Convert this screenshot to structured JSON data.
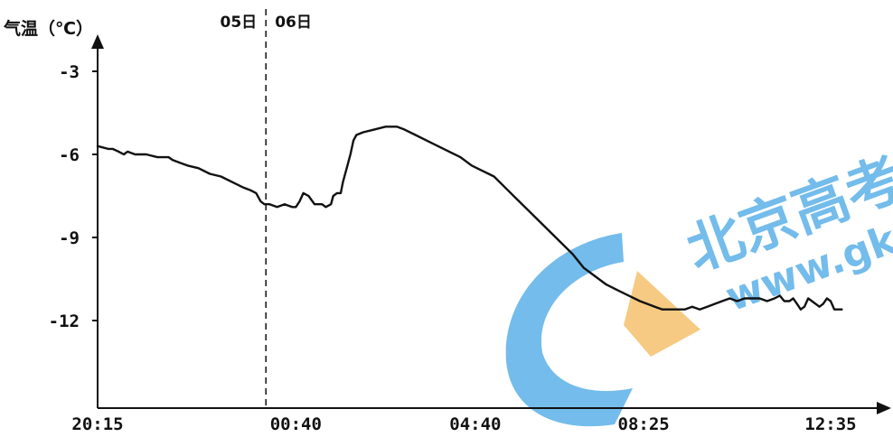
{
  "chart_data": {
    "type": "line",
    "ylabel": "气温（℃）",
    "yticks": [
      -3,
      -6,
      -9,
      -12
    ],
    "ylim": [
      -15,
      -1
    ],
    "x_ticks": [
      {
        "label": "20:15",
        "minutes": 0
      },
      {
        "label": "00:40",
        "minutes": 265
      },
      {
        "label": "04:40",
        "minutes": 505
      },
      {
        "label": "08:25",
        "minutes": 730
      },
      {
        "label": "12:35",
        "minutes": 980
      }
    ],
    "day_divider": {
      "minutes": 225,
      "before_label": "05日",
      "after_label": "06日"
    },
    "series": [
      {
        "color": "#111111",
        "points": [
          [
            0,
            -5.7
          ],
          [
            14,
            -5.8
          ],
          [
            20,
            -5.8
          ],
          [
            28,
            -5.9
          ],
          [
            35,
            -6.0
          ],
          [
            40,
            -5.9
          ],
          [
            50,
            -6.0
          ],
          [
            65,
            -6.0
          ],
          [
            80,
            -6.1
          ],
          [
            95,
            -6.1
          ],
          [
            100,
            -6.2
          ],
          [
            110,
            -6.3
          ],
          [
            120,
            -6.4
          ],
          [
            135,
            -6.5
          ],
          [
            150,
            -6.7
          ],
          [
            165,
            -6.8
          ],
          [
            180,
            -7.0
          ],
          [
            195,
            -7.2
          ],
          [
            205,
            -7.3
          ],
          [
            212,
            -7.4
          ],
          [
            218,
            -7.7
          ],
          [
            223,
            -7.8
          ],
          [
            230,
            -7.8
          ],
          [
            240,
            -7.9
          ],
          [
            250,
            -7.8
          ],
          [
            260,
            -7.9
          ],
          [
            265,
            -7.9
          ],
          [
            270,
            -7.7
          ],
          [
            275,
            -7.4
          ],
          [
            282,
            -7.5
          ],
          [
            290,
            -7.8
          ],
          [
            300,
            -7.8
          ],
          [
            305,
            -7.9
          ],
          [
            312,
            -7.8
          ],
          [
            315,
            -7.5
          ],
          [
            320,
            -7.4
          ],
          [
            325,
            -7.4
          ],
          [
            328,
            -7.0
          ],
          [
            333,
            -6.5
          ],
          [
            338,
            -6.0
          ],
          [
            342,
            -5.5
          ],
          [
            346,
            -5.3
          ],
          [
            355,
            -5.2
          ],
          [
            370,
            -5.1
          ],
          [
            385,
            -5.0
          ],
          [
            400,
            -5.0
          ],
          [
            410,
            -5.1
          ],
          [
            425,
            -5.3
          ],
          [
            440,
            -5.5
          ],
          [
            455,
            -5.7
          ],
          [
            470,
            -5.9
          ],
          [
            485,
            -6.1
          ],
          [
            500,
            -6.4
          ],
          [
            515,
            -6.6
          ],
          [
            530,
            -6.8
          ],
          [
            545,
            -7.2
          ],
          [
            560,
            -7.6
          ],
          [
            575,
            -8.0
          ],
          [
            590,
            -8.4
          ],
          [
            605,
            -8.8
          ],
          [
            620,
            -9.2
          ],
          [
            635,
            -9.6
          ],
          [
            650,
            -10.1
          ],
          [
            665,
            -10.4
          ],
          [
            680,
            -10.7
          ],
          [
            695,
            -10.9
          ],
          [
            710,
            -11.1
          ],
          [
            725,
            -11.3
          ],
          [
            735,
            -11.4
          ],
          [
            745,
            -11.5
          ],
          [
            755,
            -11.6
          ],
          [
            765,
            -11.6
          ],
          [
            775,
            -11.6
          ],
          [
            785,
            -11.6
          ],
          [
            795,
            -11.5
          ],
          [
            805,
            -11.6
          ],
          [
            815,
            -11.5
          ],
          [
            825,
            -11.4
          ],
          [
            835,
            -11.3
          ],
          [
            845,
            -11.2
          ],
          [
            855,
            -11.3
          ],
          [
            865,
            -11.2
          ],
          [
            875,
            -11.2
          ],
          [
            885,
            -11.2
          ],
          [
            895,
            -11.3
          ],
          [
            905,
            -11.2
          ],
          [
            912,
            -11.1
          ],
          [
            918,
            -11.3
          ],
          [
            925,
            -11.3
          ],
          [
            930,
            -11.2
          ],
          [
            935,
            -11.4
          ],
          [
            940,
            -11.6
          ],
          [
            945,
            -11.5
          ],
          [
            950,
            -11.2
          ],
          [
            955,
            -11.3
          ],
          [
            960,
            -11.4
          ],
          [
            965,
            -11.5
          ],
          [
            970,
            -11.4
          ],
          [
            975,
            -11.2
          ],
          [
            980,
            -11.3
          ],
          [
            985,
            -11.6
          ],
          [
            995,
            -11.6
          ]
        ]
      }
    ]
  },
  "watermark": {
    "title": "北京高考",
    "url": "www.gk",
    "colors": {
      "blue": "#5ab0e8",
      "orange": "#f5c16c"
    }
  }
}
